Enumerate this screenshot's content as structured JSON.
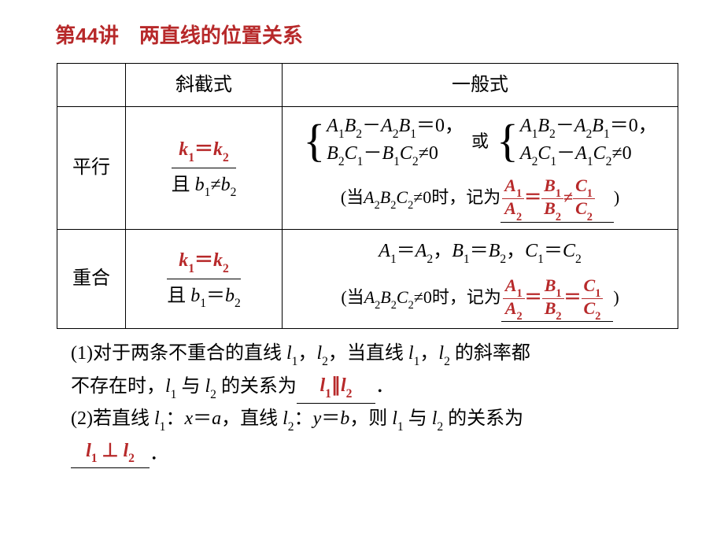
{
  "colors": {
    "accent": "#b7292a",
    "text": "#000000",
    "background": "#ffffff",
    "border": "#000000"
  },
  "title": "第44讲　两直线的位置关系",
  "table": {
    "head_col2": "斜截式",
    "head_col3": "一般式",
    "row1_label": "平行",
    "row1_col2_top": "k₁＝k₂",
    "row1_col2_bot": "且 b₁≠b₂",
    "row1_sys1_l1": "A₁B₂－A₂B₁＝0，",
    "row1_sys1_l2": "B₂C₁－B₁C₂≠0",
    "row1_or": "或",
    "row1_sys2_l1": "A₁B₂－A₂B₁＝0，",
    "row1_sys2_l2": "A₂C₁－A₁C₂≠0",
    "row1_memo_pre": "(当",
    "row1_memo_cond": "A₂B₂C₂≠0",
    "row1_memo_mid": "时，记为",
    "row1_memo_frac_num1": "A₁",
    "row1_memo_frac_den1": "A₂",
    "row1_memo_eq": "＝",
    "row1_memo_frac_num2": "B₁",
    "row1_memo_frac_den2": "B₂",
    "row1_memo_neq": "≠",
    "row1_memo_frac_num3": "C₁",
    "row1_memo_frac_den3": "C₂",
    "row1_memo_post": ")",
    "row2_label": "重合",
    "row2_col2_top": "k₁＝k₂",
    "row2_col2_bot": "且 b₁＝b₂",
    "row2_top": "A₁＝A₂，B₁＝B₂，C₁＝C₂",
    "row2_memo_pre": "(当",
    "row2_memo_cond": "A₂B₂C₂≠0",
    "row2_memo_mid": "时，记为",
    "row2_eq1": "＝",
    "row2_eq2": "＝",
    "row2_memo_post": ")"
  },
  "body": {
    "p1": "(1)对于两条不重合的直线 l₁，l₂，当直线 l₁，l₂ 的斜率都不存在时，l₁ 与 l₂ 的关系为",
    "p1_blank": "l₁∥l₂",
    "p1_end": "．",
    "p2a": "(2)若直线 l₁：x＝a，直线 l₂：y＝b，则 l₁ 与 l₂ 的关系为",
    "p2_blank": "l₁ ⊥ l₂",
    "p2_end": "．"
  }
}
